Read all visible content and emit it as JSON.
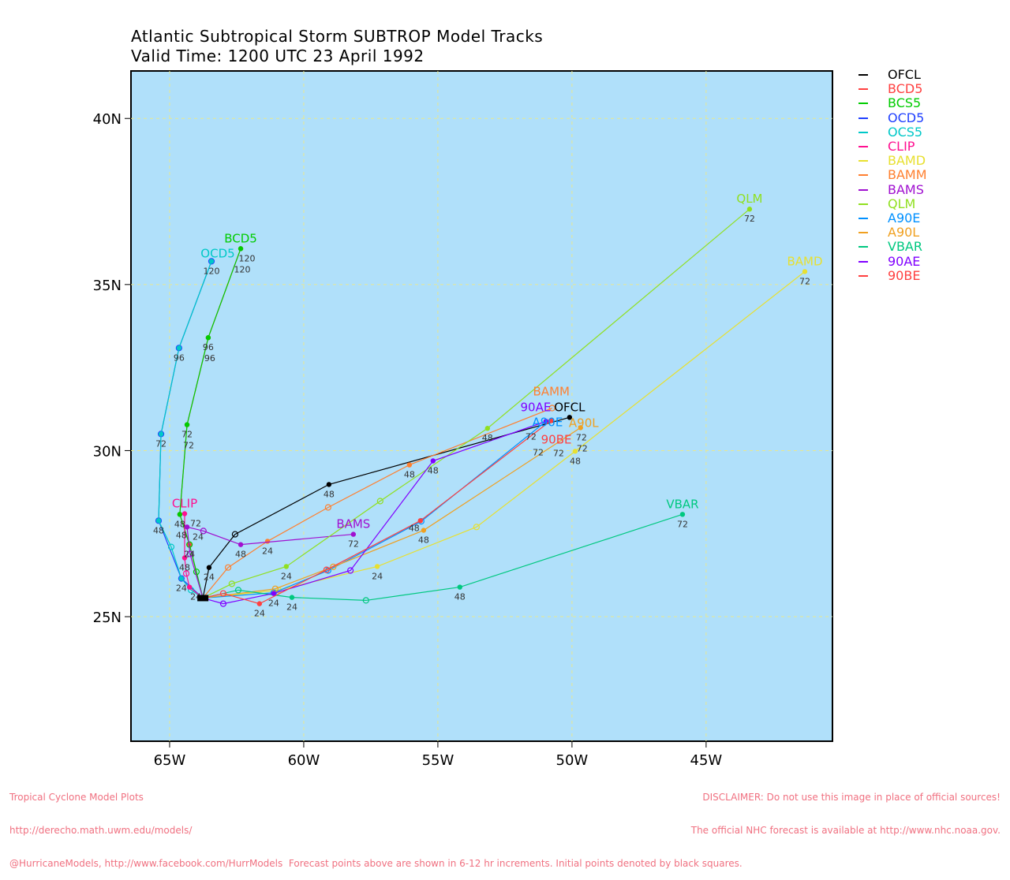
{
  "title": "Atlantic Subtropical Storm SUBTROP Model Tracks",
  "subtitle": "Valid Time: 1200 UTC 23 April 1992",
  "footer_left": [
    "Tropical Cyclone Model Plots",
    "http://derecho.math.uwm.edu/models/",
    "@HurricaneModels, http://www.facebook.com/HurrModels  Forecast points above are shown in 6-12 hr increments. Initial points denoted by black squares."
  ],
  "footer_right": [
    "DISCLAIMER: Do not use this image in place of official sources!",
    "The official NHC forecast is available at http://www.nhc.noaa.gov."
  ],
  "chart_data": {
    "type": "line",
    "map_background": "#b0e0fa",
    "grid": true,
    "xlim": [
      -66.44,
      -40.29
    ],
    "ylim": [
      21.25,
      41.43
    ],
    "x_ticks": [
      -65,
      -60,
      -55,
      -50,
      -45
    ],
    "x_tick_labels": [
      "65W",
      "60W",
      "55W",
      "50W",
      "45W"
    ],
    "y_ticks": [
      25,
      30,
      35,
      40
    ],
    "y_tick_labels": [
      "25N",
      "30N",
      "35N",
      "40N"
    ],
    "initial_point": [
      -63.76,
      25.56
    ],
    "legend_position": "right-outside",
    "series": [
      {
        "name": "OFCL",
        "color": "#000000",
        "label": "OFCL",
        "points": [
          [
            -63.76,
            25.56,
            ""
          ],
          [
            -63.53,
            26.48,
            "24"
          ],
          [
            -62.56,
            27.48,
            ""
          ],
          [
            -59.06,
            28.98,
            "48"
          ],
          [
            -50.09,
            31.0,
            "72"
          ]
        ]
      },
      {
        "name": "BCD5",
        "color": "#ff4040",
        "label": "",
        "points": [
          [
            -63.76,
            25.56,
            ""
          ],
          [
            -64.26,
            27.17,
            "24"
          ],
          [
            -64.62,
            28.08,
            "48"
          ],
          [
            -64.35,
            30.78,
            "72"
          ],
          [
            -63.56,
            33.4,
            "96"
          ],
          [
            -62.35,
            36.08,
            "120"
          ]
        ]
      },
      {
        "name": "BCS5",
        "color": "#00cc00",
        "label": "BCD5",
        "points": [
          [
            -63.76,
            25.56,
            ""
          ],
          [
            -64.0,
            26.35,
            ""
          ],
          [
            -64.26,
            27.17,
            ""
          ],
          [
            -64.62,
            28.08,
            "48"
          ],
          [
            -64.35,
            30.78,
            "72"
          ],
          [
            -63.56,
            33.4,
            "96"
          ],
          [
            -62.35,
            36.08,
            "120"
          ]
        ]
      },
      {
        "name": "OCD5",
        "color": "#2040ff",
        "label": "",
        "points": [
          [
            -63.76,
            25.56,
            ""
          ],
          [
            -64.56,
            26.15,
            ""
          ],
          [
            -65.41,
            27.89,
            ""
          ],
          [
            -65.32,
            30.5,
            ""
          ],
          [
            -64.65,
            33.09,
            ""
          ],
          [
            -63.44,
            35.7,
            ""
          ]
        ]
      },
      {
        "name": "OCS5",
        "color": "#00c8c8",
        "label": "OCD5",
        "points": [
          [
            -63.76,
            25.56,
            ""
          ],
          [
            -64.2,
            25.8,
            ""
          ],
          [
            -64.56,
            26.15,
            "24"
          ],
          [
            -64.94,
            27.1,
            ""
          ],
          [
            -65.41,
            27.89,
            "48"
          ],
          [
            -65.32,
            30.5,
            "72"
          ],
          [
            -64.65,
            33.09,
            "96"
          ],
          [
            -63.44,
            35.7,
            "120"
          ]
        ]
      },
      {
        "name": "CLIP",
        "color": "#ff1090",
        "label": "CLIP",
        "points": [
          [
            -63.76,
            25.56,
            ""
          ],
          [
            -64.26,
            25.89,
            "24"
          ],
          [
            -64.38,
            26.3,
            ""
          ],
          [
            -64.44,
            26.77,
            "48"
          ],
          [
            -64.44,
            28.1,
            "72"
          ]
        ]
      },
      {
        "name": "BAMD",
        "color": "#e8e030",
        "label": "BAMD",
        "points": [
          [
            -63.76,
            25.56,
            ""
          ],
          [
            -60.94,
            25.8,
            ""
          ],
          [
            -57.26,
            26.51,
            "24"
          ],
          [
            -53.56,
            27.7,
            ""
          ],
          [
            -49.88,
            29.98,
            "48"
          ],
          [
            -41.32,
            35.39,
            "72"
          ]
        ]
      },
      {
        "name": "BAMM",
        "color": "#ff8030",
        "label": "BAMM",
        "points": [
          [
            -63.76,
            25.56,
            ""
          ],
          [
            -62.82,
            26.48,
            ""
          ],
          [
            -61.35,
            27.27,
            "24"
          ],
          [
            -59.09,
            28.29,
            ""
          ],
          [
            -56.06,
            29.57,
            "48"
          ],
          [
            -50.74,
            31.28,
            ""
          ]
        ]
      },
      {
        "name": "BAMS",
        "color": "#a010d0",
        "label": "BAMS",
        "points": [
          [
            -63.76,
            25.56,
            ""
          ],
          [
            -64.24,
            26.89,
            ""
          ],
          [
            -64.35,
            27.7,
            "24"
          ],
          [
            -63.74,
            27.58,
            ""
          ],
          [
            -62.35,
            27.17,
            "48"
          ],
          [
            -58.15,
            27.48,
            "72"
          ]
        ]
      },
      {
        "name": "QLM",
        "color": "#90e020",
        "label": "QLM",
        "points": [
          [
            -63.76,
            25.56,
            ""
          ],
          [
            -62.68,
            25.99,
            ""
          ],
          [
            -60.65,
            26.51,
            "24"
          ],
          [
            -57.15,
            28.48,
            ""
          ],
          [
            -53.15,
            30.67,
            "48"
          ],
          [
            -43.38,
            37.27,
            "72"
          ]
        ]
      },
      {
        "name": "A90E",
        "color": "#0090ff",
        "label": "A90E",
        "points": [
          [
            -63.76,
            25.56,
            ""
          ],
          [
            -61.12,
            25.72,
            ""
          ],
          [
            -59.09,
            26.39,
            ""
          ],
          [
            -55.62,
            27.87,
            ""
          ],
          [
            -50.97,
            30.88,
            "72"
          ]
        ]
      },
      {
        "name": "A90L",
        "color": "#f0a020",
        "label": "A90L",
        "points": [
          [
            -63.76,
            25.56,
            ""
          ],
          [
            -61.06,
            25.84,
            ""
          ],
          [
            -58.9,
            26.5,
            ""
          ],
          [
            -55.53,
            27.6,
            "48"
          ],
          [
            -49.68,
            30.69,
            "72"
          ]
        ]
      },
      {
        "name": "VBAR",
        "color": "#00c880",
        "label": "VBAR",
        "points": [
          [
            -63.76,
            25.56,
            ""
          ],
          [
            -62.44,
            25.8,
            ""
          ],
          [
            -60.44,
            25.58,
            "24"
          ],
          [
            -57.68,
            25.49,
            ""
          ],
          [
            -54.18,
            25.89,
            "48"
          ],
          [
            -45.88,
            28.08,
            "72"
          ]
        ]
      },
      {
        "name": "90AE",
        "color": "#8000ff",
        "label": "90AE",
        "points": [
          [
            -63.76,
            25.56,
            ""
          ],
          [
            -63.0,
            25.39,
            ""
          ],
          [
            -61.12,
            25.7,
            "24"
          ],
          [
            -58.26,
            26.39,
            ""
          ],
          [
            -55.18,
            29.69,
            "48"
          ],
          [
            -50.97,
            30.88,
            "72"
          ]
        ]
      },
      {
        "name": "90BE",
        "color": "#ff4040",
        "label": "90BE",
        "points": [
          [
            -63.76,
            25.56,
            ""
          ],
          [
            -63.0,
            25.7,
            ""
          ],
          [
            -61.65,
            25.39,
            "24"
          ],
          [
            -59.15,
            26.41,
            ""
          ],
          [
            -55.65,
            27.89,
            "48"
          ],
          [
            -50.79,
            30.9,
            "72"
          ]
        ]
      }
    ]
  }
}
